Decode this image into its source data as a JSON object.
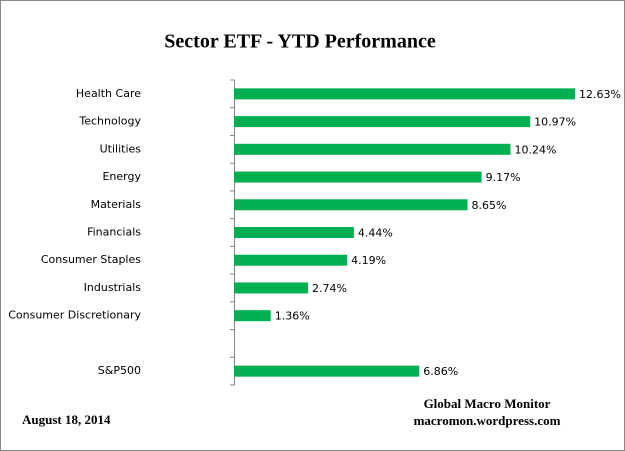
{
  "chart_data": {
    "type": "bar",
    "orientation": "horizontal",
    "title": "Sector ETF - YTD  Performance",
    "categories": [
      "Health Care",
      "Technology",
      "Utilities",
      "Energy",
      "Materials",
      "Financials",
      "Consumer Staples",
      "Industrials",
      "Consumer Discretionary",
      null,
      "S&P500"
    ],
    "values": [
      12.63,
      10.97,
      10.24,
      9.17,
      8.65,
      4.44,
      4.19,
      2.74,
      1.36,
      null,
      6.86
    ],
    "value_labels": [
      "12.63%",
      "10.97%",
      "10.24%",
      "9.17%",
      "8.65%",
      "4.44%",
      "4.19%",
      "2.74%",
      "1.36%",
      null,
      "6.86%"
    ],
    "color": "#00b050",
    "date": "August 18, 2014",
    "source": "Global Macro Monitor",
    "website": "macromon.wordpress.com"
  }
}
